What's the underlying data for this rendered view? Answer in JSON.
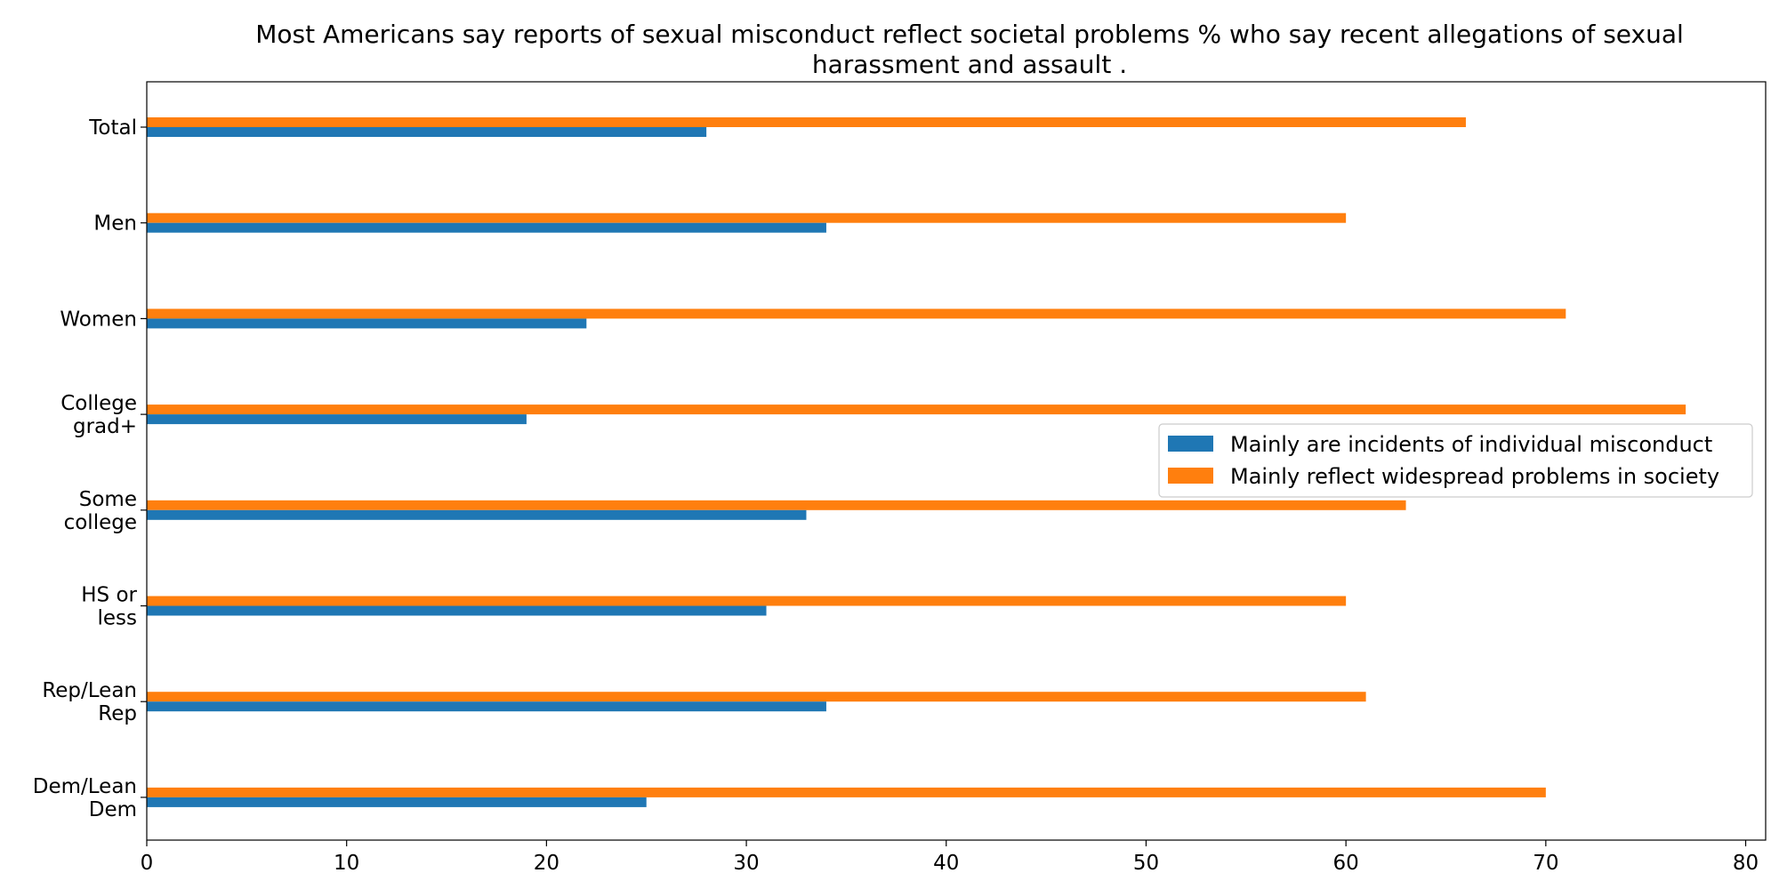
{
  "chart_data": {
    "type": "bar",
    "orientation": "horizontal",
    "title": "Most Americans say reports of sexual misconduct reflect societal problems % who say recent allegations of sexual harassment and assault .",
    "title_lines": [
      "Most Americans say reports of sexual misconduct reflect societal problems % who say recent allegations of sexual",
      "harassment and assault ."
    ],
    "categories": [
      [
        "Total"
      ],
      [
        "Men"
      ],
      [
        "Women"
      ],
      [
        "College",
        "grad+"
      ],
      [
        "Some",
        "college"
      ],
      [
        "HS or",
        "less"
      ],
      [
        "Rep/Lean",
        "Rep"
      ],
      [
        "Dem/Lean",
        "Dem"
      ]
    ],
    "series": [
      {
        "name": "Mainly are incidents of individual misconduct",
        "color": "#1f77b4",
        "values": [
          28,
          34,
          22,
          19,
          33,
          31,
          34,
          25
        ]
      },
      {
        "name": "Mainly reflect widespread problems in society",
        "color": "#ff7f0e",
        "values": [
          66,
          60,
          71,
          77,
          63,
          60,
          61,
          70
        ]
      }
    ],
    "xlim": [
      0,
      81
    ],
    "xticks": [
      0,
      10,
      20,
      30,
      40,
      50,
      60,
      70,
      80
    ],
    "xlabel": "",
    "ylabel": "",
    "grid": false,
    "legend_position": "center-right"
  }
}
